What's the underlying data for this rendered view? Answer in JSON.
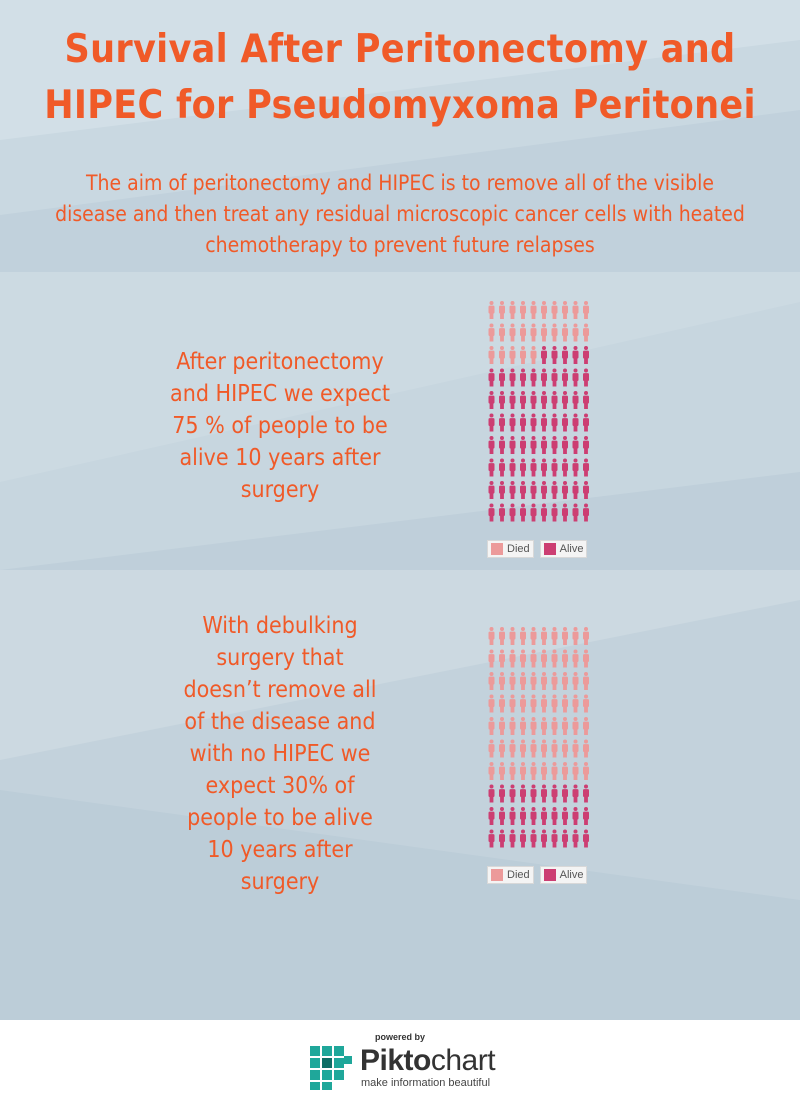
{
  "header": {
    "title_line1": "Survival After Peritonectomy and",
    "title_line2": "HIPEC for Pseudomyxoma Peritonei",
    "subtitle_line1": "The aim of peritonectomy and HIPEC is to remove all of the visible",
    "subtitle_line2": "disease and then treat any residual microscopic cancer cells with heated",
    "subtitle_line3": "chemotherapy to prevent future relapses"
  },
  "colors": {
    "accent": "#f05a28",
    "died": "#ec9a9a",
    "alive": "#cc3e72"
  },
  "panels": [
    {
      "text_lines": [
        "After peritonectomy",
        "and HIPEC we expect",
        "75 % of people to be",
        "alive 10 years after",
        "surgery"
      ]
    },
    {
      "text_lines": [
        "With debulking",
        "surgery that",
        "doesn’t remove all",
        "of the disease and",
        "with no HIPEC we",
        "expect 30% of",
        "people to be alive",
        "10 years after",
        "surgery"
      ]
    }
  ],
  "chart_data": [
    {
      "type": "pictogram",
      "icon": "person-icon",
      "grid": {
        "rows": 10,
        "columns": 10
      },
      "total": 100,
      "series": [
        {
          "name": "Died",
          "value": 25,
          "color": "#ec9a9a"
        },
        {
          "name": "Alive",
          "value": 75,
          "color": "#cc3e72"
        }
      ],
      "legend": [
        "Died",
        "Alive"
      ],
      "legend_position": "bottom-left"
    },
    {
      "type": "pictogram",
      "icon": "person-icon",
      "grid": {
        "rows": 10,
        "columns": 10
      },
      "total": 100,
      "series": [
        {
          "name": "Died",
          "value": 70,
          "color": "#ec9a9a"
        },
        {
          "name": "Alive",
          "value": 30,
          "color": "#cc3e72"
        }
      ],
      "legend": [
        "Died",
        "Alive"
      ],
      "legend_position": "bottom-left"
    }
  ],
  "footer": {
    "powered_by": "powered by",
    "brand_bold": "Pikto",
    "brand_light": "chart",
    "tagline": "make information beautiful"
  }
}
